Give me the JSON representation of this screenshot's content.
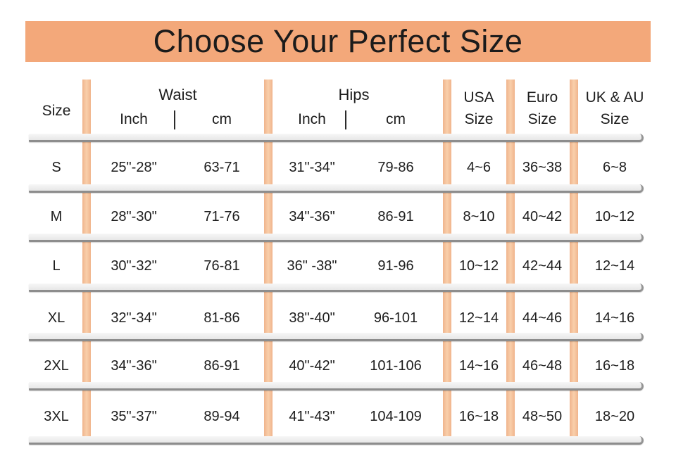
{
  "title": "Choose Your Perfect Size",
  "colors": {
    "banner": "#f3a87a",
    "column_bar": "#f9cfab",
    "column_bar_edge": "#f0b48c",
    "divider_light": "#ececec",
    "divider_dark": "#8d8d8d",
    "text": "#1d1d1d"
  },
  "chart_data": {
    "type": "table",
    "title": "Choose Your Perfect Size",
    "header": {
      "size": "Size",
      "waist": {
        "label": "Waist",
        "inch": "Inch",
        "cm": "cm"
      },
      "hips": {
        "label": "Hips",
        "inch": "Inch",
        "cm": "cm"
      },
      "usa": {
        "line1": "USA",
        "line2": "Size"
      },
      "euro": {
        "line1": "Euro",
        "line2": "Size"
      },
      "ukau": {
        "line1": "UK & AU",
        "line2": "Size"
      }
    },
    "rows": [
      {
        "size": "S",
        "waist_inch": "25\"-28\"",
        "waist_cm": "63-71",
        "hips_inch": "31\"-34\"",
        "hips_cm": "79-86",
        "usa": "4~6",
        "euro": "36~38",
        "ukau": "6~8"
      },
      {
        "size": "M",
        "waist_inch": "28\"-30\"",
        "waist_cm": "71-76",
        "hips_inch": "34\"-36\"",
        "hips_cm": "86-91",
        "usa": "8~10",
        "euro": "40~42",
        "ukau": "10~12"
      },
      {
        "size": "L",
        "waist_inch": "30\"-32\"",
        "waist_cm": "76-81",
        "hips_inch": "36\" -38\"",
        "hips_cm": "91-96",
        "usa": "10~12",
        "euro": "42~44",
        "ukau": "12~14"
      },
      {
        "size": "XL",
        "waist_inch": "32\"-34\"",
        "waist_cm": "81-86",
        "hips_inch": "38\"-40\"",
        "hips_cm": "96-101",
        "usa": "12~14",
        "euro": "44~46",
        "ukau": "14~16"
      },
      {
        "size": "2XL",
        "waist_inch": "34\"-36\"",
        "waist_cm": "86-91",
        "hips_inch": "40\"-42\"",
        "hips_cm": "101-106",
        "usa": "14~16",
        "euro": "46~48",
        "ukau": "16~18"
      },
      {
        "size": "3XL",
        "waist_inch": "35\"-37\"",
        "waist_cm": "89-94",
        "hips_inch": "41\"-43\"",
        "hips_cm": "104-109",
        "usa": "16~18",
        "euro": "48~50",
        "ukau": "18~20"
      }
    ]
  }
}
